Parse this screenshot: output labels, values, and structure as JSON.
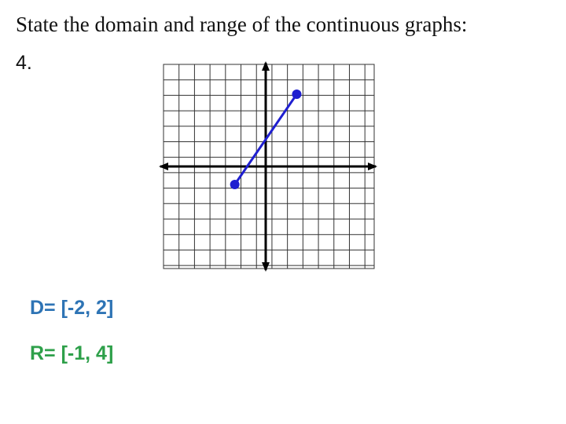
{
  "header": {
    "title": "State the domain and range of the continuous graphs:",
    "number": "4."
  },
  "chart_data": {
    "type": "line",
    "x": [
      -2,
      2
    ],
    "values": [
      -1,
      4
    ],
    "color": "#1f1fd0",
    "xlim": [
      -6.6,
      7
    ],
    "ylim": [
      -5.65,
      5.65
    ]
  },
  "answers": {
    "domain": "D= [-2, 2]",
    "range": "R= [-1, 4]"
  }
}
